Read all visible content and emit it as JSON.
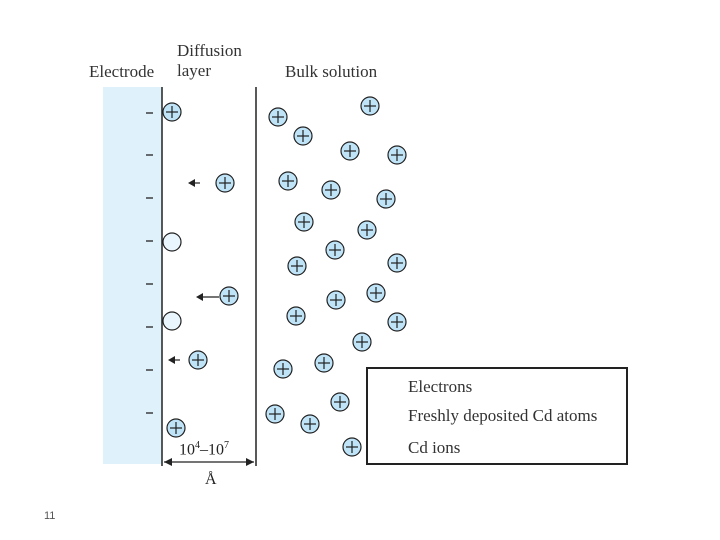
{
  "labels": {
    "electrode": "Electrode",
    "diffusion_line1": "Diffusion",
    "diffusion_line2": "layer",
    "bulk": "Bulk solution"
  },
  "dimension": {
    "base": "10",
    "exp1": "4",
    "dash": "–",
    "exp2": "7",
    "unit": "Å"
  },
  "legend": [
    {
      "symbol": "electron",
      "text": "Electrons"
    },
    {
      "symbol": "atom",
      "text": "Freshly deposited Cd atoms"
    },
    {
      "symbol": "ion",
      "text": "Cd ions"
    }
  ],
  "electrode_marks": {
    "dash": "–",
    "count": 8
  },
  "page_number": "11",
  "colors": {
    "electrode_fill": "#dff1fb",
    "particle_fill": "#bfe3f7",
    "line": "#222222",
    "text": "#333333"
  }
}
